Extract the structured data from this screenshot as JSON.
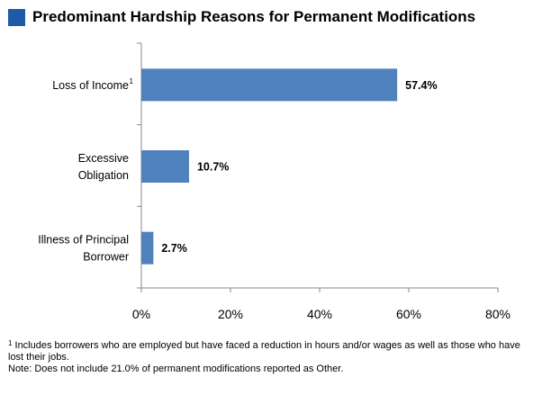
{
  "chart_data": {
    "type": "bar",
    "orientation": "horizontal",
    "title": "Predominant Hardship Reasons for Permanent Modifications",
    "categories": [
      {
        "lines": [
          "Loss of Income"
        ],
        "sup": "1"
      },
      {
        "lines": [
          "Excessive",
          "Obligation"
        ],
        "sup": ""
      },
      {
        "lines": [
          "Illness of Principal",
          "Borrower"
        ],
        "sup": ""
      }
    ],
    "values": [
      57.4,
      10.7,
      2.7
    ],
    "data_labels": [
      "57.4%",
      "10.7%",
      "2.7%"
    ],
    "xlim": [
      0,
      80
    ],
    "xticks": [
      0,
      20,
      40,
      60,
      80
    ],
    "xtick_labels": [
      "0%",
      "20%",
      "40%",
      "60%",
      "80%"
    ],
    "xlabel": "",
    "ylabel": "",
    "grid": false,
    "bar_color": "#4f81bd",
    "accent_color": "#1f5aa6"
  },
  "footnotes": {
    "note1_marker": "1",
    "note1_text": " Includes borrowers who are employed but have faced a reduction in hours and/or wages as well as those who have lost their jobs.",
    "note2_text": "Note: Does not include 21.0% of permanent modifications reported as Other."
  }
}
